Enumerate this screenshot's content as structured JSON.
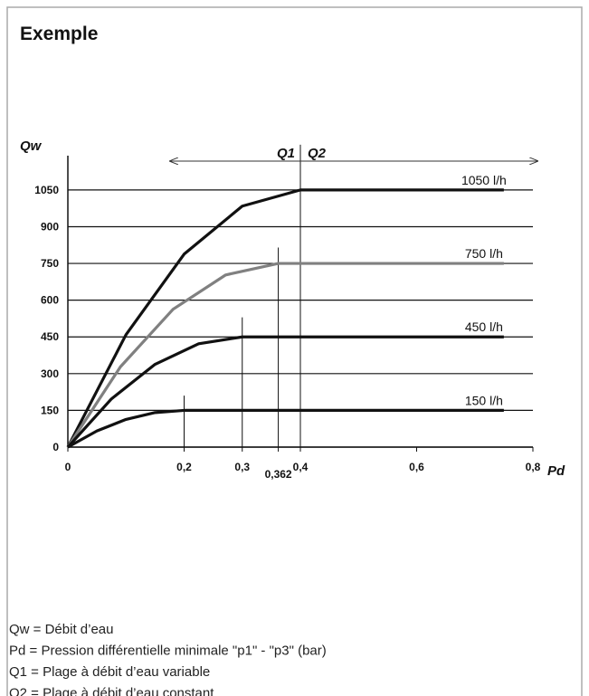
{
  "header": {
    "title": "Exemple"
  },
  "chart_data": {
    "type": "line",
    "ylabel": "Qw",
    "xlabel": "Pd",
    "xlim": [
      0,
      0.8
    ],
    "ylim": [
      0,
      1190
    ],
    "xticks": [
      0,
      {
        "value": 0.2,
        "label": "0,2"
      },
      {
        "value": 0.3,
        "label": "0,3"
      },
      {
        "value": 0.362,
        "label": "0,362"
      },
      {
        "value": 0.4,
        "label": "0,4"
      },
      {
        "value": 0.6,
        "label": "0,6"
      },
      {
        "value": 0.8,
        "label": "0,8"
      }
    ],
    "yticks": [
      0,
      150,
      300,
      450,
      600,
      750,
      900,
      1050
    ],
    "grid": true,
    "series": [
      {
        "name": "1050 l/h",
        "color": "#111111",
        "x": [
          0,
          0.1,
          0.2,
          0.3,
          0.4,
          0.75
        ],
        "values": [
          0,
          459,
          788,
          984,
          1050,
          1050
        ]
      },
      {
        "name": "750 l/h",
        "color": "#808080",
        "x": [
          0,
          0.0905,
          0.181,
          0.2715,
          0.362,
          0.75
        ],
        "values": [
          0,
          328,
          563,
          703,
          750,
          750
        ]
      },
      {
        "name": "450 l/h",
        "color": "#111111",
        "x": [
          0,
          0.075,
          0.15,
          0.225,
          0.3,
          0.75
        ],
        "values": [
          0,
          197,
          338,
          422,
          450,
          450
        ]
      },
      {
        "name": "150 l/h",
        "color": "#111111",
        "x": [
          0,
          0.05,
          0.1,
          0.15,
          0.2,
          0.75
        ],
        "values": [
          0,
          66,
          113,
          141,
          150,
          150
        ]
      }
    ],
    "guides": [
      {
        "x": 0.2,
        "y": 210
      },
      {
        "x": 0.3,
        "y": 530
      },
      {
        "x": 0.362,
        "y": 815
      },
      {
        "x": 0.4,
        "y": 1235
      }
    ],
    "arrow": {
      "x": [
        0.176,
        0.808
      ],
      "y": 1168
    },
    "zones": [
      "Q1",
      "Q2"
    ]
  },
  "notes": [
    "Qw = Débit d’eau",
    "Pd = Pression différentielle minimale \"p1\" - \"p3\" (bar)",
    "Q1 = Plage à débit d’eau variable",
    "Q2 = Plage à débit d’eau constant"
  ]
}
